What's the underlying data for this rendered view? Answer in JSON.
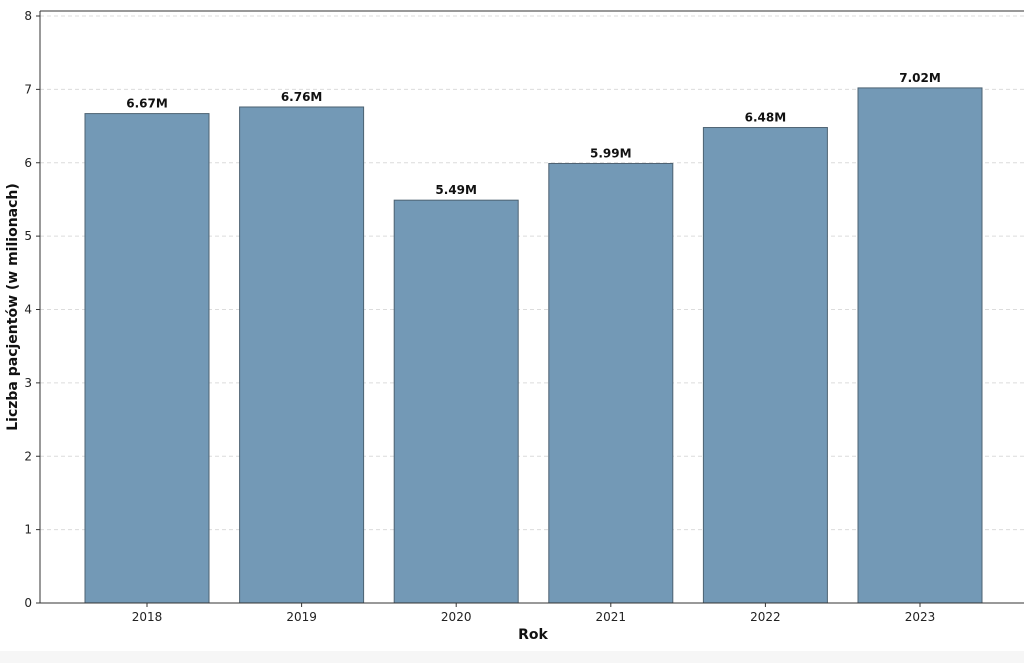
{
  "chart_data": {
    "type": "bar",
    "categories": [
      "2018",
      "2019",
      "2020",
      "2021",
      "2022",
      "2023"
    ],
    "values": [
      6.67,
      6.76,
      5.49,
      5.99,
      6.48,
      7.02
    ],
    "data_labels": [
      "6.67M",
      "6.76M",
      "5.49M",
      "5.99M",
      "6.48M",
      "7.02M"
    ],
    "xlabel": "Rok",
    "ylabel": "Liczba pacjentów (w milionach)",
    "ylim": [
      0,
      8
    ],
    "yticks": [
      "0",
      "1",
      "2",
      "3",
      "4",
      "5",
      "6",
      "7",
      "8"
    ],
    "grid": "horizontal, dashed",
    "bar_color": "#7399b6",
    "bar_edge_color": "#4d6272"
  }
}
